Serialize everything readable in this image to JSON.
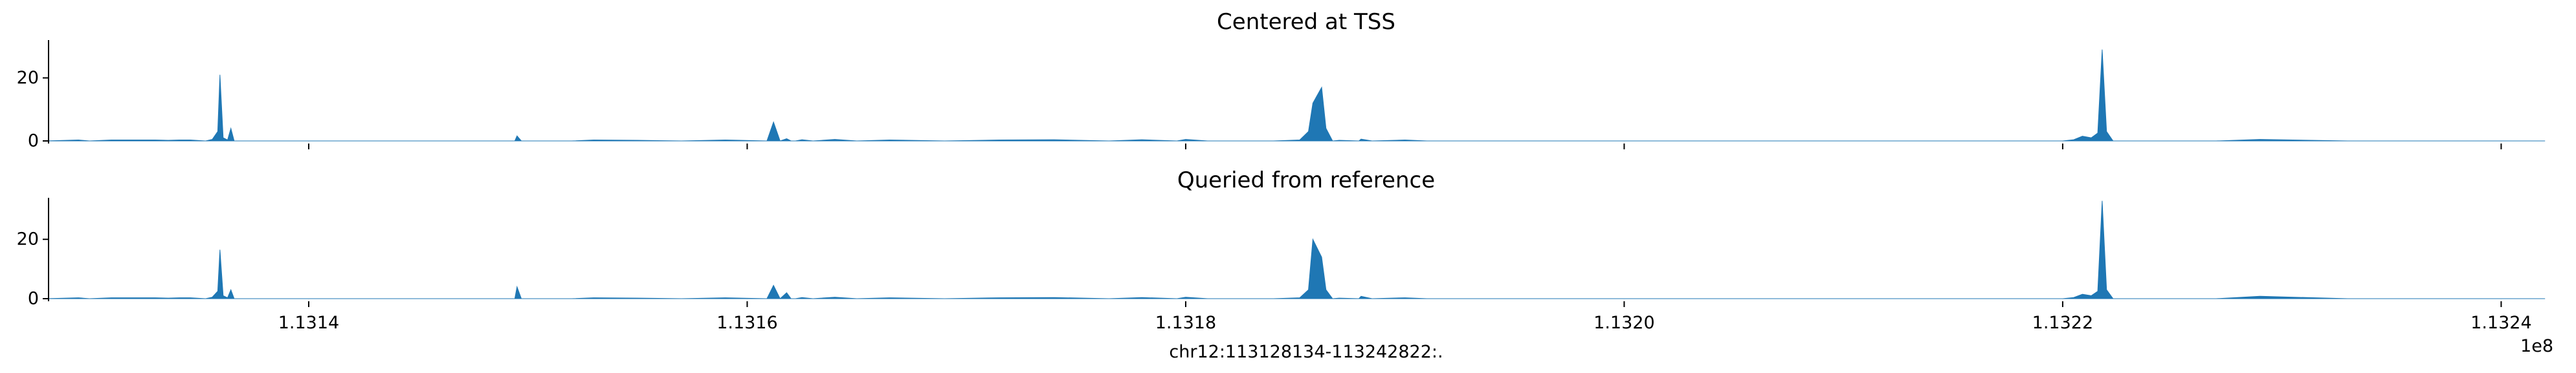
{
  "chart_data": [
    {
      "type": "area",
      "title": "Centered at TSS",
      "ylim": [
        0,
        32
      ],
      "yticks": [
        0,
        20
      ],
      "xlim": [
        113128134,
        113242822
      ],
      "color": "#1f77b4",
      "x_axis_visible": false,
      "series": [
        {
          "x": [
            113128000,
            113129500,
            113130000,
            113131000,
            113133000,
            113133600,
            113134100,
            113134600,
            113135300,
            113135600,
            113135850,
            113135950,
            113136100,
            113136300,
            113136450,
            113136600,
            113137000,
            113140000,
            113141500,
            113144000,
            113145000,
            113149400,
            113149500,
            113149700,
            113149900,
            113150500,
            113152000,
            113153000,
            113155000,
            113157000,
            113159000,
            113160900,
            113161200,
            113161500,
            113161800,
            113162000,
            113162200,
            113162500,
            113163000,
            113164000,
            113165000,
            113166500,
            113169000,
            113171500,
            113174000,
            113176500,
            113178000,
            113179600,
            113180000,
            113181000,
            113184000,
            113185200,
            113185600,
            113185800,
            113186200,
            113186400,
            113186700,
            113187000,
            113187900,
            113188000,
            113188500,
            113190000,
            113191000,
            113200000,
            113209000,
            113215000,
            113220000,
            113220500,
            113220900,
            113221300,
            113221600,
            113221800,
            113222000,
            113222300,
            113223000,
            113227000,
            113229000,
            113233000,
            113238000,
            113242000
          ],
          "y": [
            0,
            0.3,
            0,
            0.3,
            0.3,
            0.2,
            0.3,
            0.3,
            0,
            0.5,
            3,
            21,
            1,
            0.3,
            4,
            0,
            0,
            0,
            0,
            0,
            0,
            0,
            1.6,
            0,
            0,
            0,
            0,
            0.3,
            0.2,
            0,
            0.3,
            0,
            6,
            0,
            0.7,
            0,
            0,
            0.4,
            0,
            0.5,
            0,
            0.3,
            0,
            0.3,
            0.4,
            0,
            0.4,
            0,
            0.5,
            0,
            0,
            0.3,
            3,
            12,
            17,
            4,
            0,
            0.2,
            0,
            0.6,
            0,
            0.3,
            0,
            0,
            0,
            0,
            0,
            0.4,
            1.5,
            1,
            2.5,
            29,
            3,
            0,
            0,
            0,
            0.5,
            0,
            0,
            0
          ]
        }
      ]
    },
    {
      "type": "area",
      "title": "Queried from reference",
      "ylim": [
        0,
        34
      ],
      "yticks": [
        0,
        20
      ],
      "xlim": [
        113128134,
        113242822
      ],
      "color": "#1f77b4",
      "x_axis_visible": true,
      "xticks": [
        113140000,
        113160000,
        113180000,
        113200000,
        113220000,
        113240000
      ],
      "xtick_labels": [
        "1.1314",
        "1.1316",
        "1.1318",
        "1.1320",
        "1.1322",
        "1.1324"
      ],
      "xlabel": "chr12:113128134-113242822:.",
      "offset_label": "1e8",
      "series": [
        {
          "x": [
            113128000,
            113129500,
            113130000,
            113131000,
            113133000,
            113133600,
            113134100,
            113134600,
            113135300,
            113135600,
            113135850,
            113135950,
            113136100,
            113136300,
            113136450,
            113136600,
            113137000,
            113140000,
            113141500,
            113144000,
            113145000,
            113149400,
            113149500,
            113149700,
            113149900,
            113150500,
            113152000,
            113153000,
            113155000,
            113157000,
            113159000,
            113160900,
            113161200,
            113161500,
            113161800,
            113162000,
            113162200,
            113162500,
            113163000,
            113164000,
            113165000,
            113166500,
            113169000,
            113171500,
            113174000,
            113176500,
            113178000,
            113179600,
            113180000,
            113181000,
            113184000,
            113185200,
            113185600,
            113185800,
            113186200,
            113186400,
            113186700,
            113187000,
            113187900,
            113188000,
            113188500,
            113190000,
            113191000,
            113200000,
            113209000,
            113215000,
            113220000,
            113220500,
            113220900,
            113221300,
            113221600,
            113221800,
            113222000,
            113222300,
            113223000,
            113227000,
            113229000,
            113233000,
            113238000,
            113242000
          ],
          "y": [
            0,
            0.3,
            0,
            0.3,
            0.3,
            0.2,
            0.3,
            0.3,
            0,
            0.5,
            2.5,
            16.5,
            1,
            0.3,
            3,
            0,
            0,
            0,
            0,
            0,
            0,
            0,
            4,
            0,
            0,
            0,
            0,
            0.3,
            0.2,
            0,
            0.3,
            0,
            4.5,
            0,
            2,
            0,
            0,
            0.4,
            0,
            0.5,
            0,
            0.3,
            0,
            0.3,
            0.4,
            0,
            0.4,
            0,
            0.5,
            0,
            0,
            0.3,
            3,
            20,
            14,
            3,
            0,
            0.2,
            0,
            0.8,
            0,
            0.3,
            0,
            0,
            0,
            0,
            0,
            0.4,
            1.5,
            1,
            2.5,
            33,
            3,
            0,
            0,
            0,
            0.8,
            0,
            0,
            0
          ]
        }
      ]
    }
  ]
}
